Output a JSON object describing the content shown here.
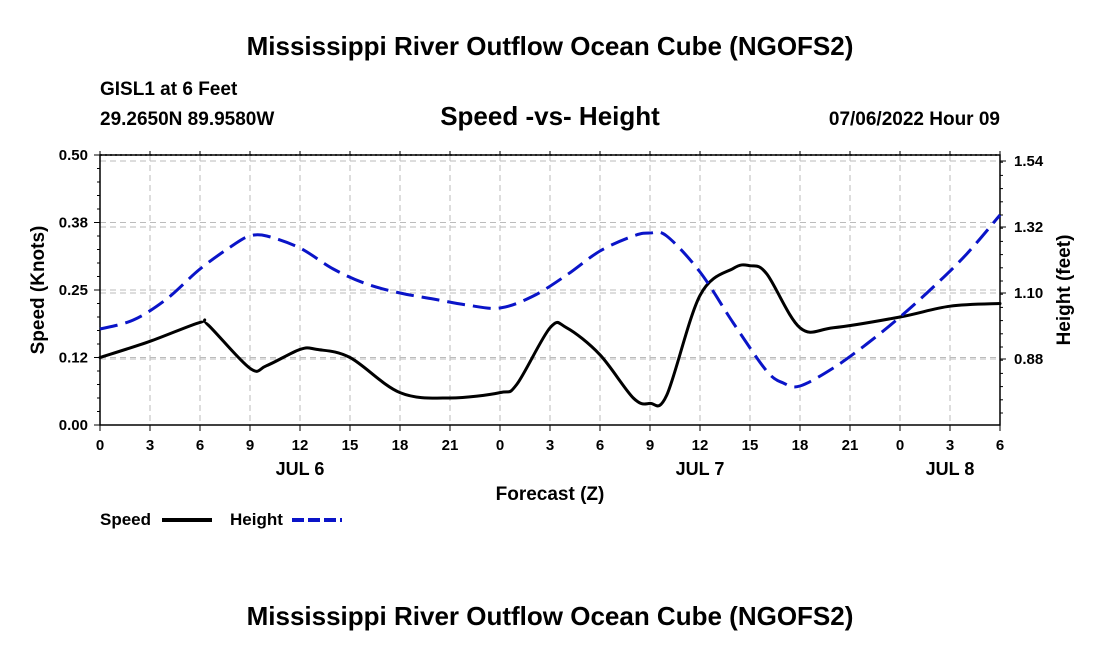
{
  "page": {
    "title": "Mississippi River Outflow Ocean Cube (NGOFS2)",
    "footer_title": "Mississippi River Outflow Ocean Cube (NGOFS2)"
  },
  "chart_data": {
    "type": "line",
    "title": "Speed -vs- Height",
    "station_line1": "GISL1 at 6 Feet",
    "station_line2": "29.2650N  89.9580W",
    "timestamp": "07/06/2022 Hour 09",
    "xlabel": "Forecast (Z)",
    "ylabel_left": "Speed (Knots)",
    "ylabel_right": "Height (feet)",
    "xlim": [
      0,
      54
    ],
    "ylim_left": [
      0,
      0.5
    ],
    "ylim_right": [
      0.66,
      1.56
    ],
    "left_ticks": [
      "0.00",
      "0.12",
      "0.25",
      "0.38",
      "0.50"
    ],
    "right_ticks": [
      "0.88",
      "1.10",
      "1.32",
      "1.54"
    ],
    "right_tick_values": [
      0.88,
      1.1,
      1.32,
      1.54
    ],
    "x_tick_labels": [
      "0",
      "3",
      "6",
      "9",
      "12",
      "15",
      "18",
      "21",
      "0",
      "3",
      "6",
      "9",
      "12",
      "15",
      "18",
      "21",
      "0",
      "3",
      "6"
    ],
    "day_labels": [
      {
        "label": "JUL 6",
        "x": 12
      },
      {
        "label": "JUL 7",
        "x": 36
      },
      {
        "label": "JUL 8",
        "x": 51
      }
    ],
    "grid": true,
    "colors": {
      "speed": "#000000",
      "height": "#0a14c8",
      "grid": "#bbbbbb"
    },
    "legend": {
      "placement": "bottom-left",
      "items": [
        {
          "label": "Speed",
          "color": "#000000",
          "style": "solid"
        },
        {
          "label": "Height",
          "color": "#0a14c8",
          "style": "dashed"
        }
      ]
    },
    "series": [
      {
        "name": "Speed",
        "axis": "left",
        "x": [
          0,
          3,
          6,
          6.5,
          9,
          10,
          12,
          13,
          15,
          18,
          21,
          24,
          25,
          27,
          28,
          30,
          32,
          33,
          34,
          36,
          38,
          39,
          40,
          42,
          44,
          48,
          51,
          54
        ],
        "values": [
          0.125,
          0.155,
          0.19,
          0.185,
          0.105,
          0.11,
          0.14,
          0.14,
          0.125,
          0.06,
          0.05,
          0.06,
          0.075,
          0.18,
          0.18,
          0.13,
          0.05,
          0.04,
          0.055,
          0.24,
          0.29,
          0.295,
          0.28,
          0.18,
          0.18,
          0.2,
          0.22,
          0.225
        ]
      },
      {
        "name": "Height",
        "axis": "right",
        "x": [
          0,
          2,
          4,
          6,
          8,
          9,
          10,
          12,
          14,
          16,
          18,
          20,
          22,
          24,
          26,
          28,
          30,
          32,
          33,
          34,
          36,
          38,
          40,
          41,
          42,
          44,
          46,
          48,
          50,
          52,
          54
        ],
        "values": [
          0.98,
          1.01,
          1.08,
          1.18,
          1.26,
          1.29,
          1.29,
          1.25,
          1.18,
          1.13,
          1.1,
          1.08,
          1.06,
          1.05,
          1.09,
          1.16,
          1.24,
          1.29,
          1.3,
          1.29,
          1.17,
          1.0,
          0.84,
          0.8,
          0.79,
          0.85,
          0.93,
          1.02,
          1.12,
          1.23,
          1.36
        ]
      }
    ]
  }
}
